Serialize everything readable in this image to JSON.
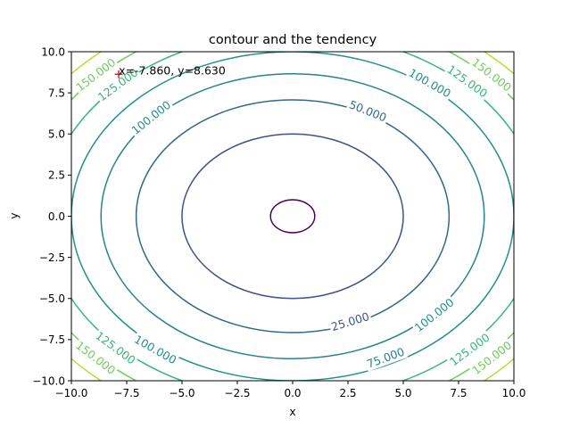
{
  "chart_data": {
    "type": "contour",
    "title": "contour and the tendency",
    "xlabel": "x",
    "ylabel": "y",
    "xlim": [
      -10,
      10
    ],
    "ylim": [
      -10,
      10
    ],
    "xticks": [
      -10,
      -7.5,
      -5,
      -2.5,
      0,
      2.5,
      5,
      7.5,
      10
    ],
    "yticks": [
      -10,
      -7.5,
      -5,
      -2.5,
      0,
      2.5,
      5,
      7.5,
      10
    ],
    "xtick_labels": [
      "−10.0",
      "−7.5",
      "−5.0",
      "−2.5",
      "0.0",
      "2.5",
      "5.0",
      "7.5",
      "10.0"
    ],
    "ytick_labels": [
      "−10.0",
      "−7.5",
      "−5.0",
      "−2.5",
      "0.0",
      "2.5",
      "5.0",
      "7.5",
      "10.0"
    ],
    "function": "x^2 + y^2",
    "levels": [
      {
        "value": 1,
        "color": "#440154"
      },
      {
        "value": 25,
        "color": "#3b528b"
      },
      {
        "value": 50,
        "color": "#30688e"
      },
      {
        "value": 75,
        "color": "#26828e"
      },
      {
        "value": 100,
        "color": "#21918c"
      },
      {
        "value": 125,
        "color": "#35b779"
      },
      {
        "value": 150,
        "color": "#6ece58"
      },
      {
        "value": 175,
        "color": "#b5de2b"
      }
    ],
    "contour_labels": [
      {
        "text": "25.000",
        "x": 2.6,
        "y": -6.4,
        "color": "#3b528b"
      },
      {
        "text": "50.000",
        "x": 3.4,
        "y": 6.4,
        "color": "#30688e"
      },
      {
        "text": "75.000",
        "x": 4.2,
        "y": -8.6,
        "color": "#26828e"
      },
      {
        "text": "100.000",
        "x": -6.4,
        "y": 6.0,
        "color": "#21918c"
      },
      {
        "text": "100.000",
        "x": 6.2,
        "y": 8.1,
        "color": "#21918c"
      },
      {
        "text": "100.000",
        "x": -6.2,
        "y": -8.1,
        "color": "#21918c"
      },
      {
        "text": "100.000",
        "x": 6.4,
        "y": -6.0,
        "color": "#21918c"
      },
      {
        "text": "125.000",
        "x": -7.9,
        "y": 8.0,
        "color": "#35b779"
      },
      {
        "text": "125.000",
        "x": 7.9,
        "y": 8.2,
        "color": "#35b779"
      },
      {
        "text": "125.000",
        "x": -8.0,
        "y": -8.0,
        "color": "#35b779"
      },
      {
        "text": "125.000",
        "x": 8.0,
        "y": -8.1,
        "color": "#35b779"
      },
      {
        "text": "150.000",
        "x": -8.9,
        "y": 8.6,
        "color": "#6ece58"
      },
      {
        "text": "150.000",
        "x": 9.0,
        "y": 8.6,
        "color": "#6ece58"
      },
      {
        "text": "150.000",
        "x": -8.9,
        "y": -8.6,
        "color": "#6ece58"
      },
      {
        "text": "150.000",
        "x": 9.0,
        "y": -8.6,
        "color": "#6ece58"
      }
    ],
    "marker": {
      "x": -7.86,
      "y": 8.63,
      "symbol": "+",
      "color": "#d62728",
      "label": "x=-7.860, y=8.630"
    }
  }
}
